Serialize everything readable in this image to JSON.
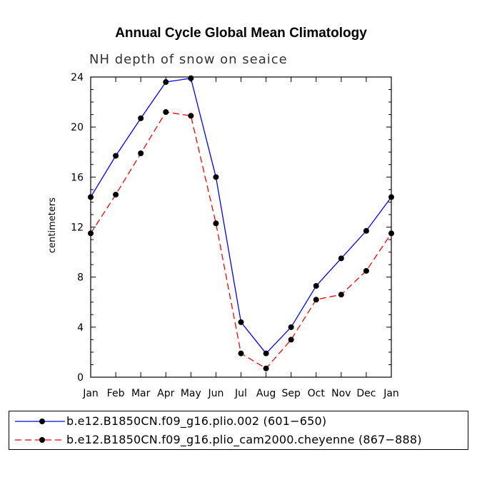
{
  "title": "Annual Cycle Global Mean Climatology",
  "subtitle": "NH depth of snow on seaice",
  "colors": {
    "series1": "#0000ff",
    "series2": "#ff0000",
    "marker": "#000000"
  },
  "chart_data": {
    "type": "line",
    "title": "Annual Cycle Global Mean Climatology",
    "subtitle": "NH depth of snow on seaice",
    "xlabel": "",
    "ylabel": "centimeters",
    "categories": [
      "Jan",
      "Feb",
      "Mar",
      "Apr",
      "May",
      "Jun",
      "Jul",
      "Aug",
      "Sep",
      "Oct",
      "Nov",
      "Dec",
      "Jan"
    ],
    "ylim": [
      0,
      24
    ],
    "yticks": [
      0,
      4,
      8,
      12,
      16,
      20,
      24
    ],
    "grid": false,
    "legend_position": "bottom",
    "series": [
      {
        "name": "b.e12.B1850CN.f09_g16.plio.002 (601−650)",
        "color": "#0000ff",
        "dash": "solid",
        "values": [
          14.4,
          17.7,
          20.7,
          23.6,
          23.9,
          16.0,
          4.4,
          1.9,
          4.0,
          7.3,
          9.5,
          11.7,
          14.4
        ]
      },
      {
        "name": "b.e12.B1850CN.f09_g16.plio_cam2000.cheyenne (867−888)",
        "color": "#ff0000",
        "dash": "dashed",
        "values": [
          11.5,
          14.6,
          17.9,
          21.2,
          20.9,
          12.3,
          1.9,
          0.7,
          3.0,
          6.2,
          6.6,
          8.5,
          11.5
        ]
      }
    ]
  }
}
